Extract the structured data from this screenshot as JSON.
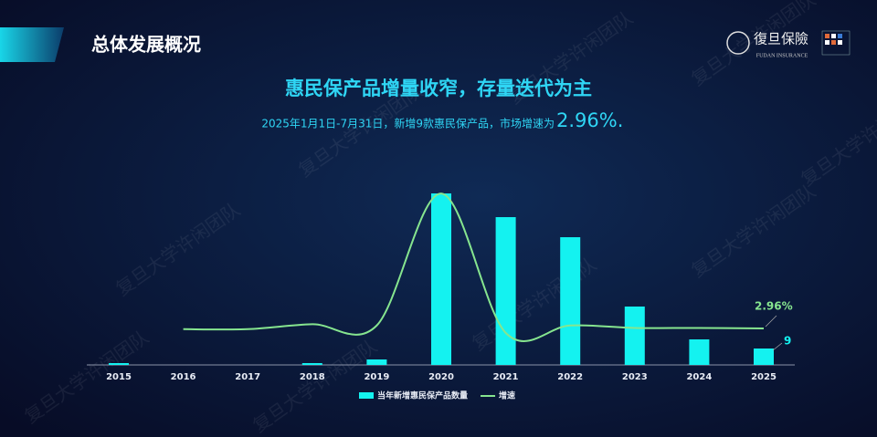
{
  "header": {
    "section_title": "总体发展概况",
    "logo_text": "復旦保險",
    "logo_subtext": "FUDAN INSURANCE",
    "watermark": "复旦大学许闲团队"
  },
  "chart_data": {
    "type": "bar",
    "title": "惠民保产品增量收窄，存量迭代为主",
    "subtitle": "2025年1月1日-7月31日，新增9款惠民保产品，市场增速为",
    "subtitle_highlight": "2.96%.",
    "categories": [
      "2015",
      "2016",
      "2017",
      "2018",
      "2019",
      "2020",
      "2021",
      "2022",
      "2023",
      "2024",
      "2025"
    ],
    "series": [
      {
        "name": "当年新增惠民保产品数量",
        "type": "bar",
        "color": "#14f2f0",
        "values": [
          1,
          0,
          0,
          1,
          3,
          94,
          81,
          70,
          32,
          14,
          9
        ]
      },
      {
        "name": "增速",
        "type": "line",
        "color": "#86e58f",
        "axis": "y2",
        "values": [
          null,
          2.9,
          2.9,
          3.3,
          3.2,
          13.9,
          2.6,
          3.2,
          3.0,
          3.0,
          2.96
        ],
        "value_labels": [
          null,
          null,
          null,
          null,
          null,
          null,
          null,
          null,
          null,
          null,
          "2.96%"
        ]
      }
    ],
    "ylim": [
      0,
      100
    ],
    "y2lim": [
      0,
      14.8
    ],
    "grid": false,
    "legend": "bottom"
  }
}
